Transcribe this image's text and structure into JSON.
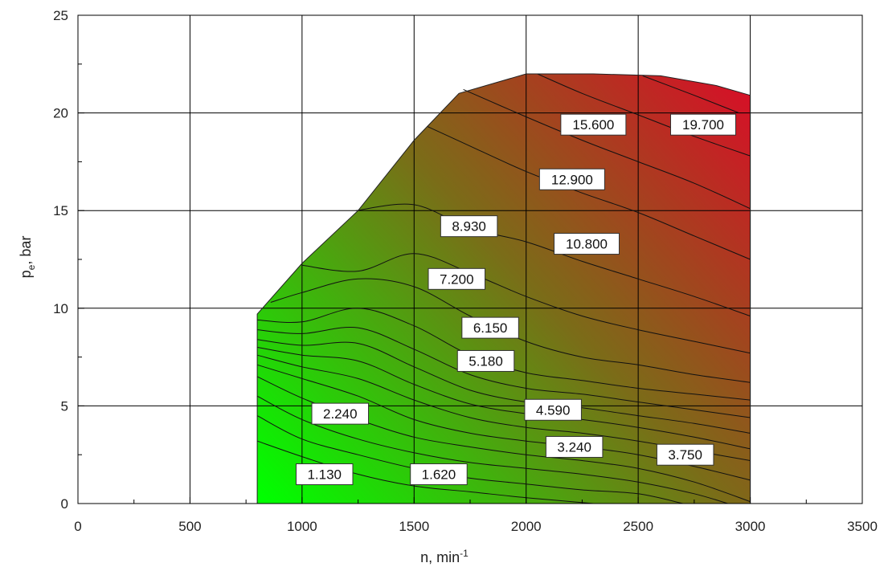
{
  "chart_data": {
    "type": "contour",
    "title": "",
    "xlabel": {
      "main": "n, min",
      "sup": "-1"
    },
    "ylabel": {
      "main": "p",
      "sub": "e",
      "rest": ", bar"
    },
    "xlim": [
      0,
      3500
    ],
    "ylim": [
      0,
      25
    ],
    "x_ticks": [
      0,
      500,
      1000,
      1500,
      2000,
      2500,
      3000,
      3500
    ],
    "y_ticks": [
      0,
      5,
      10,
      15,
      20,
      25
    ],
    "grid": true,
    "color_scale": {
      "low": "#00ff00",
      "mid": "#7a6d18",
      "high": "#dc0a28"
    },
    "operating_envelope": [
      [
        800,
        0
      ],
      [
        800,
        9.7
      ],
      [
        1000,
        12.3
      ],
      [
        1250,
        15
      ],
      [
        1500,
        18.6
      ],
      [
        1700,
        21
      ],
      [
        2000,
        22
      ],
      [
        2300,
        22
      ],
      [
        2600,
        21.9
      ],
      [
        2850,
        21.4
      ],
      [
        3000,
        20.9
      ],
      [
        3000,
        0
      ]
    ],
    "contour_lines": [
      [
        [
          800,
          3.2
        ],
        [
          1000,
          2.4
        ],
        [
          1250,
          1.5
        ],
        [
          1500,
          0.9
        ],
        [
          1750,
          0.6
        ],
        [
          2000,
          0.3
        ],
        [
          2300,
          0
        ]
      ],
      [
        [
          800,
          4.5
        ],
        [
          1000,
          3.3
        ],
        [
          1250,
          2.5
        ],
        [
          1500,
          1.8
        ],
        [
          1750,
          1.3
        ],
        [
          2000,
          1.0
        ],
        [
          2250,
          0.7
        ],
        [
          2500,
          0.5
        ],
        [
          2700,
          0
        ]
      ],
      [
        [
          800,
          5.5
        ],
        [
          1000,
          4.3
        ],
        [
          1250,
          3.3
        ],
        [
          1500,
          2.6
        ],
        [
          1750,
          2.1
        ],
        [
          2000,
          1.8
        ],
        [
          2250,
          1.5
        ],
        [
          2500,
          1.1
        ],
        [
          2750,
          0.5
        ],
        [
          2900,
          0
        ]
      ],
      [
        [
          800,
          6.5
        ],
        [
          1000,
          5.4
        ],
        [
          1250,
          4.3
        ],
        [
          1500,
          3.4
        ],
        [
          1750,
          2.9
        ],
        [
          2000,
          2.5
        ],
        [
          2250,
          2.2
        ],
        [
          2500,
          1.8
        ],
        [
          2750,
          1.1
        ],
        [
          3000,
          0.1
        ]
      ],
      [
        [
          800,
          7.1
        ],
        [
          1000,
          6.4
        ],
        [
          1250,
          5.5
        ],
        [
          1500,
          4.3
        ],
        [
          1750,
          3.6
        ],
        [
          2000,
          3.2
        ],
        [
          2250,
          2.9
        ],
        [
          2500,
          2.5
        ],
        [
          2750,
          1.9
        ],
        [
          3000,
          1.2
        ]
      ],
      [
        [
          800,
          7.6
        ],
        [
          1000,
          7.0
        ],
        [
          1250,
          6.4
        ],
        [
          1500,
          5.3
        ],
        [
          1750,
          4.4
        ],
        [
          2000,
          3.9
        ],
        [
          2250,
          3.6
        ],
        [
          2500,
          3.2
        ],
        [
          2750,
          2.7
        ],
        [
          3000,
          2.2
        ]
      ],
      [
        [
          800,
          8.0
        ],
        [
          1000,
          7.6
        ],
        [
          1250,
          7.3
        ],
        [
          1500,
          6.1
        ],
        [
          1750,
          5.1
        ],
        [
          2000,
          4.6
        ],
        [
          2250,
          4.3
        ],
        [
          2500,
          3.9
        ],
        [
          2750,
          3.4
        ],
        [
          3000,
          2.8
        ]
      ],
      [
        [
          800,
          8.4
        ],
        [
          1000,
          8.1
        ],
        [
          1250,
          8.2
        ],
        [
          1500,
          7.0
        ],
        [
          1750,
          5.8
        ],
        [
          2000,
          5.2
        ],
        [
          2250,
          4.9
        ],
        [
          2500,
          4.5
        ],
        [
          2750,
          4.1
        ],
        [
          3000,
          3.6
        ]
      ],
      [
        [
          800,
          8.9
        ],
        [
          1000,
          8.7
        ],
        [
          1250,
          9.0
        ],
        [
          1500,
          7.9
        ],
        [
          1750,
          6.6
        ],
        [
          2000,
          5.9
        ],
        [
          2250,
          5.6
        ],
        [
          2500,
          5.2
        ],
        [
          2750,
          4.8
        ],
        [
          3000,
          4.4
        ]
      ],
      [
        [
          800,
          9.4
        ],
        [
          1000,
          9.3
        ],
        [
          1250,
          10.0
        ],
        [
          1500,
          9.1
        ],
        [
          1750,
          7.6
        ],
        [
          2000,
          6.7
        ],
        [
          2250,
          6.3
        ],
        [
          2500,
          5.9
        ],
        [
          2750,
          5.6
        ],
        [
          3000,
          5.3
        ]
      ],
      [
        [
          860,
          10.3
        ],
        [
          1000,
          10.8
        ],
        [
          1250,
          11.5
        ],
        [
          1500,
          11.1
        ],
        [
          1750,
          9.6
        ],
        [
          2000,
          8.3
        ],
        [
          2250,
          7.5
        ],
        [
          2500,
          7.1
        ],
        [
          2750,
          6.6
        ],
        [
          3000,
          6.2
        ]
      ],
      [
        [
          1000,
          12.2
        ],
        [
          1250,
          11.9
        ],
        [
          1500,
          12.8
        ],
        [
          1750,
          11.8
        ],
        [
          2000,
          10.6
        ],
        [
          2250,
          9.6
        ],
        [
          2500,
          8.9
        ],
        [
          2750,
          8.3
        ],
        [
          3000,
          7.7
        ]
      ],
      [
        [
          1240,
          15.0
        ],
        [
          1500,
          15.3
        ],
        [
          1750,
          14.1
        ],
        [
          2000,
          13.4
        ],
        [
          2250,
          12.4
        ],
        [
          2500,
          11.5
        ],
        [
          2750,
          10.6
        ],
        [
          3000,
          9.6
        ]
      ],
      [
        [
          1560,
          19.3
        ],
        [
          1750,
          18.3
        ],
        [
          2000,
          17.0
        ],
        [
          2250,
          15.9
        ],
        [
          2500,
          14.9
        ],
        [
          2750,
          13.7
        ],
        [
          3000,
          12.5
        ]
      ],
      [
        [
          1720,
          21.2
        ],
        [
          2000,
          19.8
        ],
        [
          2250,
          18.6
        ],
        [
          2500,
          17.5
        ],
        [
          2750,
          16.4
        ],
        [
          3000,
          15.1
        ]
      ],
      [
        [
          2050,
          22.0
        ],
        [
          2250,
          21.0
        ],
        [
          2500,
          19.9
        ],
        [
          2750,
          18.8
        ],
        [
          3000,
          17.8
        ]
      ],
      [
        [
          2520,
          21.9
        ],
        [
          2750,
          20.9
        ],
        [
          2950,
          20.0
        ]
      ]
    ],
    "contour_labels": [
      {
        "text": "1.130",
        "x": 1100,
        "y": 1.5
      },
      {
        "text": "1.620",
        "x": 1610,
        "y": 1.5
      },
      {
        "text": "2.240",
        "x": 1170,
        "y": 4.6
      },
      {
        "text": "3.240",
        "x": 2215,
        "y": 2.9
      },
      {
        "text": "3.750",
        "x": 2710,
        "y": 2.5
      },
      {
        "text": "4.590",
        "x": 2120,
        "y": 4.8
      },
      {
        "text": "5.180",
        "x": 1820,
        "y": 7.3
      },
      {
        "text": "6.150",
        "x": 1840,
        "y": 9.0
      },
      {
        "text": "7.200",
        "x": 1690,
        "y": 11.5
      },
      {
        "text": "8.930",
        "x": 1745,
        "y": 14.2
      },
      {
        "text": "10.800",
        "x": 2270,
        "y": 13.3
      },
      {
        "text": "12.900",
        "x": 2205,
        "y": 16.6
      },
      {
        "text": "15.600",
        "x": 2300,
        "y": 19.4
      },
      {
        "text": "19.700",
        "x": 2790,
        "y": 19.4
      }
    ]
  }
}
